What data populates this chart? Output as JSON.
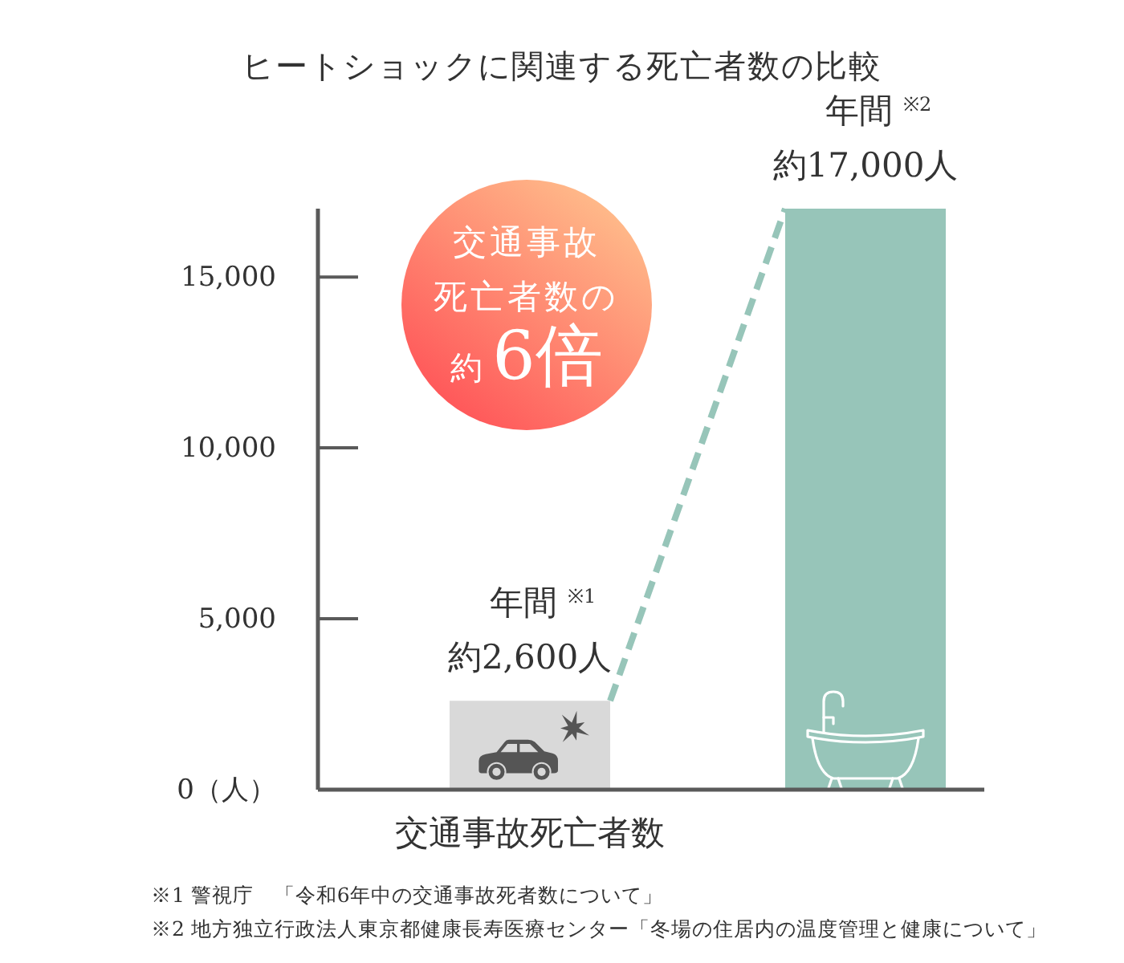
{
  "chart_data": {
    "type": "bar",
    "title": "ヒートショックに関連する死亡者数の比較",
    "categories": [
      "交通事故死亡者数",
      null
    ],
    "values": [
      2600,
      17000
    ],
    "colors": [
      "#d9d9d9",
      "#97c5b9"
    ],
    "value_labels": [
      "約2,600人",
      "約17,000人"
    ],
    "ylim": [
      0,
      17000
    ],
    "yticks": [
      {
        "value": 0,
        "label": "0（人）"
      },
      {
        "value": 5000,
        "label": "5,000"
      },
      {
        "value": 10000,
        "label": "10,000"
      },
      {
        "value": 15000,
        "label": "15,000"
      }
    ],
    "annotations": [
      "交通事故死亡者数の約6倍",
      {
        "text": "年間 $^{※1}$",
        "x": "交通事故死亡者数",
        "y": 2600
      },
      {
        "text": "年間 $^{※2}$",
        "y": 17000
      },
      "※1 警視庁　「令和6年中の交通事故死者数について」",
      "※2 地方独立行政法人東京都健康長寿医療センター「冬場の住居内の温度管理と健康について」"
    ]
  }
}
